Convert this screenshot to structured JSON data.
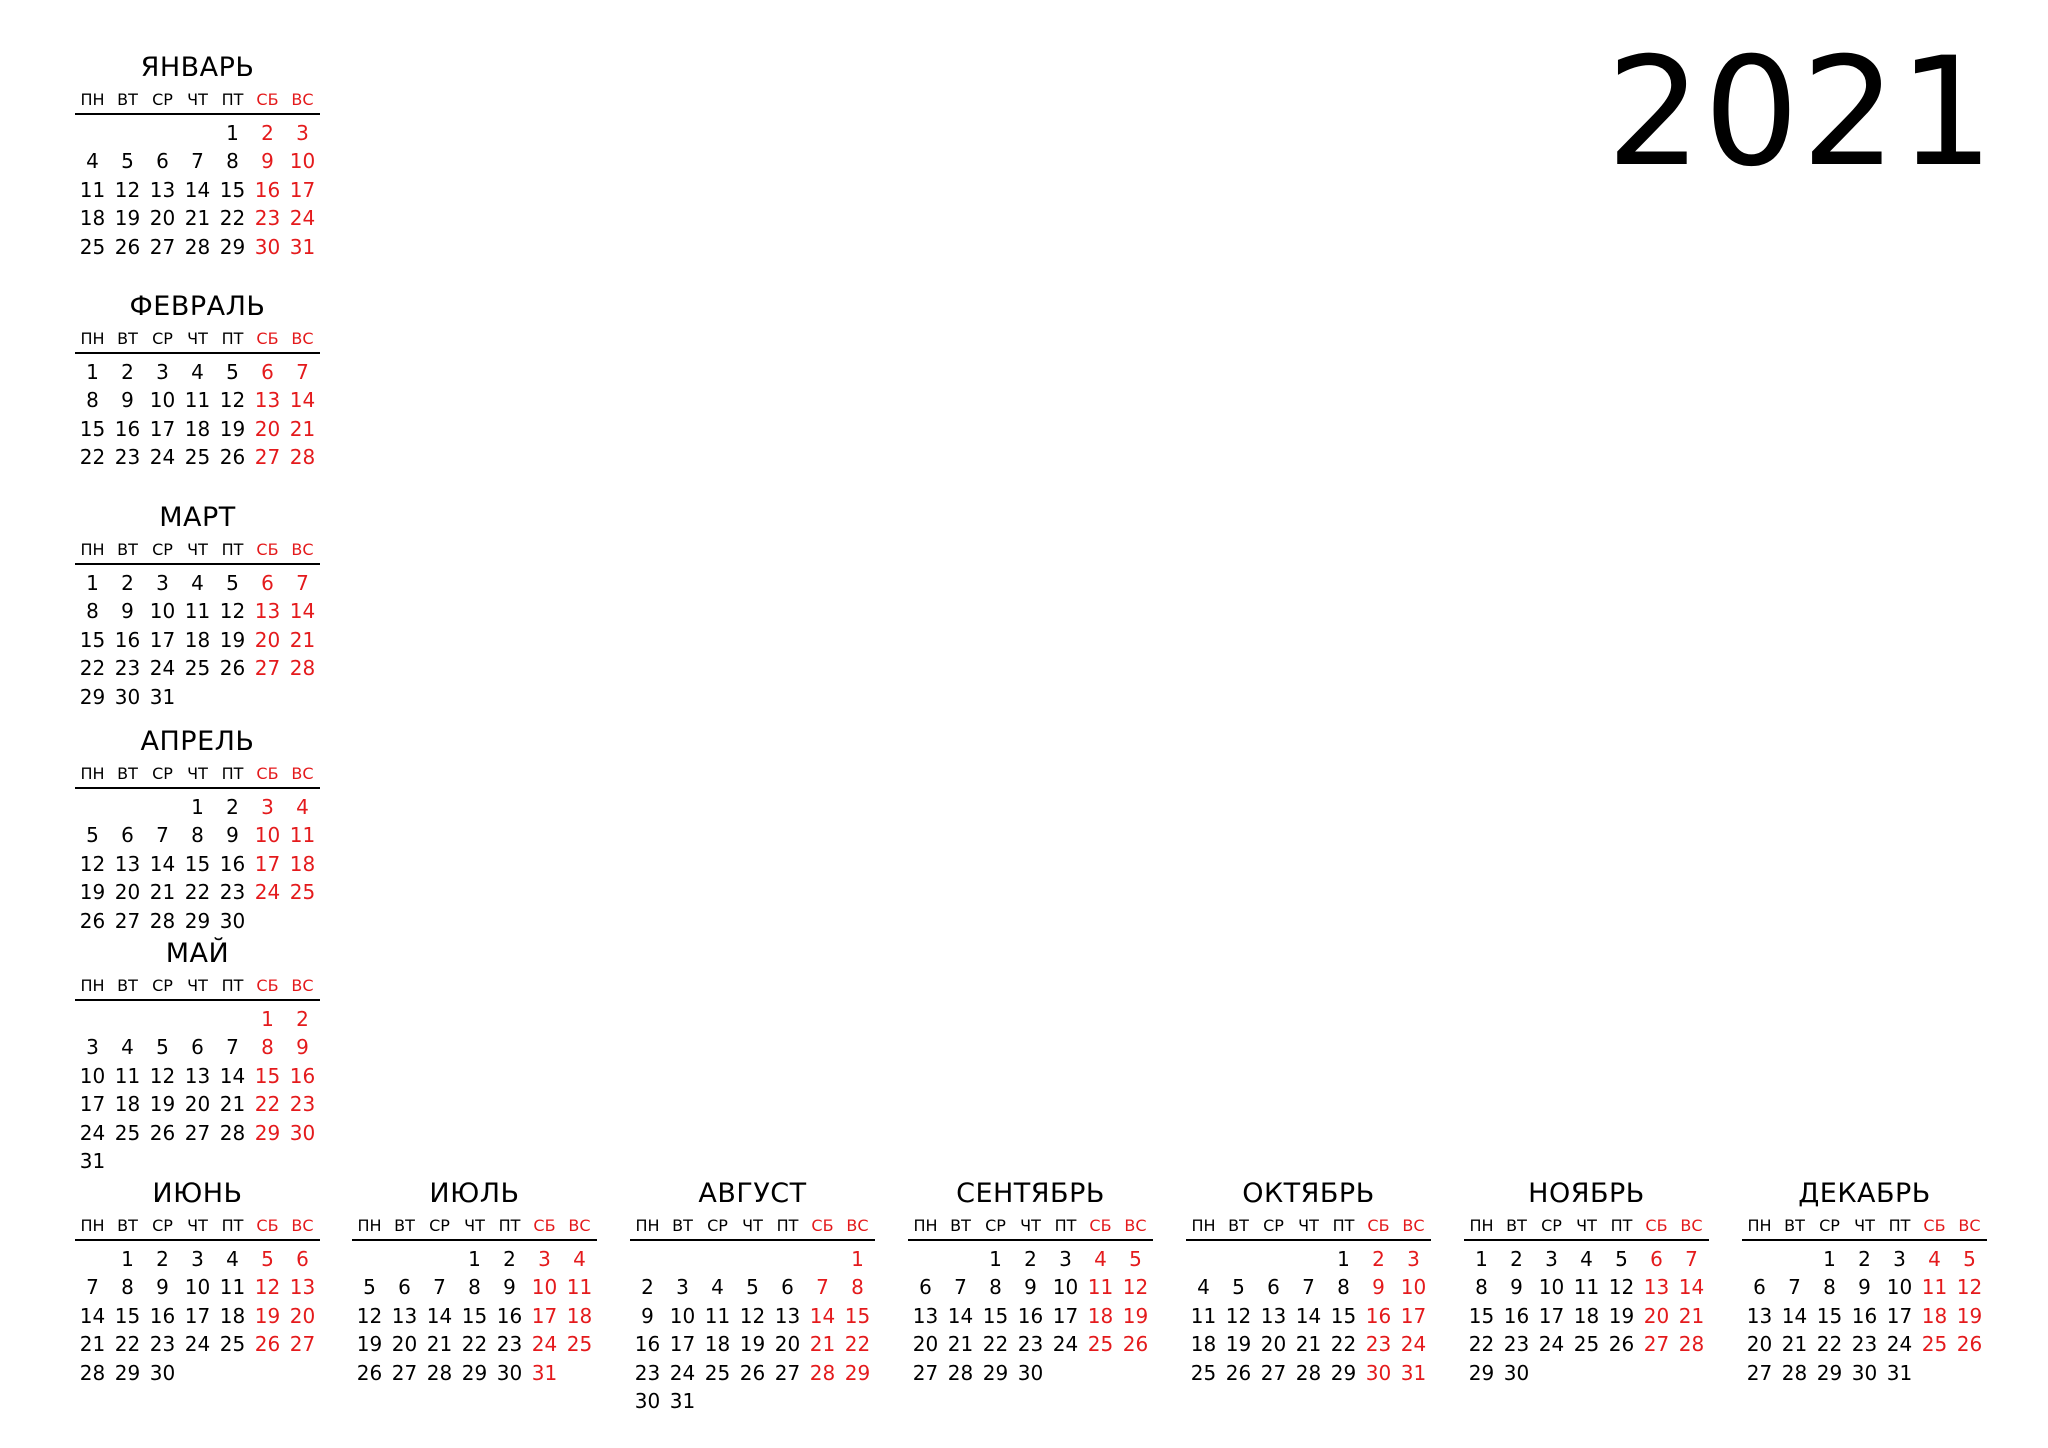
{
  "year": "2021",
  "weekday_labels": [
    "ПН",
    "ВТ",
    "СР",
    "ЧТ",
    "ПТ",
    "СБ",
    "ВС"
  ],
  "colors": {
    "text": "#000000",
    "weekend": "#e41a1c",
    "background": "#ffffff"
  },
  "months": [
    {
      "name": "ЯНВАРЬ",
      "offset": 4,
      "days": 31
    },
    {
      "name": "ФЕВРАЛЬ",
      "offset": 0,
      "days": 28
    },
    {
      "name": "МАРТ",
      "offset": 0,
      "days": 31
    },
    {
      "name": "АПРЕЛЬ",
      "offset": 3,
      "days": 30
    },
    {
      "name": "МАЙ",
      "offset": 5,
      "days": 31
    },
    {
      "name": "ИЮНЬ",
      "offset": 1,
      "days": 30
    },
    {
      "name": "ИЮЛЬ",
      "offset": 3,
      "days": 31
    },
    {
      "name": "АВГУСТ",
      "offset": 6,
      "days": 31
    },
    {
      "name": "СЕНТЯБРЬ",
      "offset": 2,
      "days": 30
    },
    {
      "name": "ОКТЯБРЬ",
      "offset": 4,
      "days": 31
    },
    {
      "name": "НОЯБРЬ",
      "offset": 0,
      "days": 30
    },
    {
      "name": "ДЕКАБРЬ",
      "offset": 2,
      "days": 31
    }
  ]
}
